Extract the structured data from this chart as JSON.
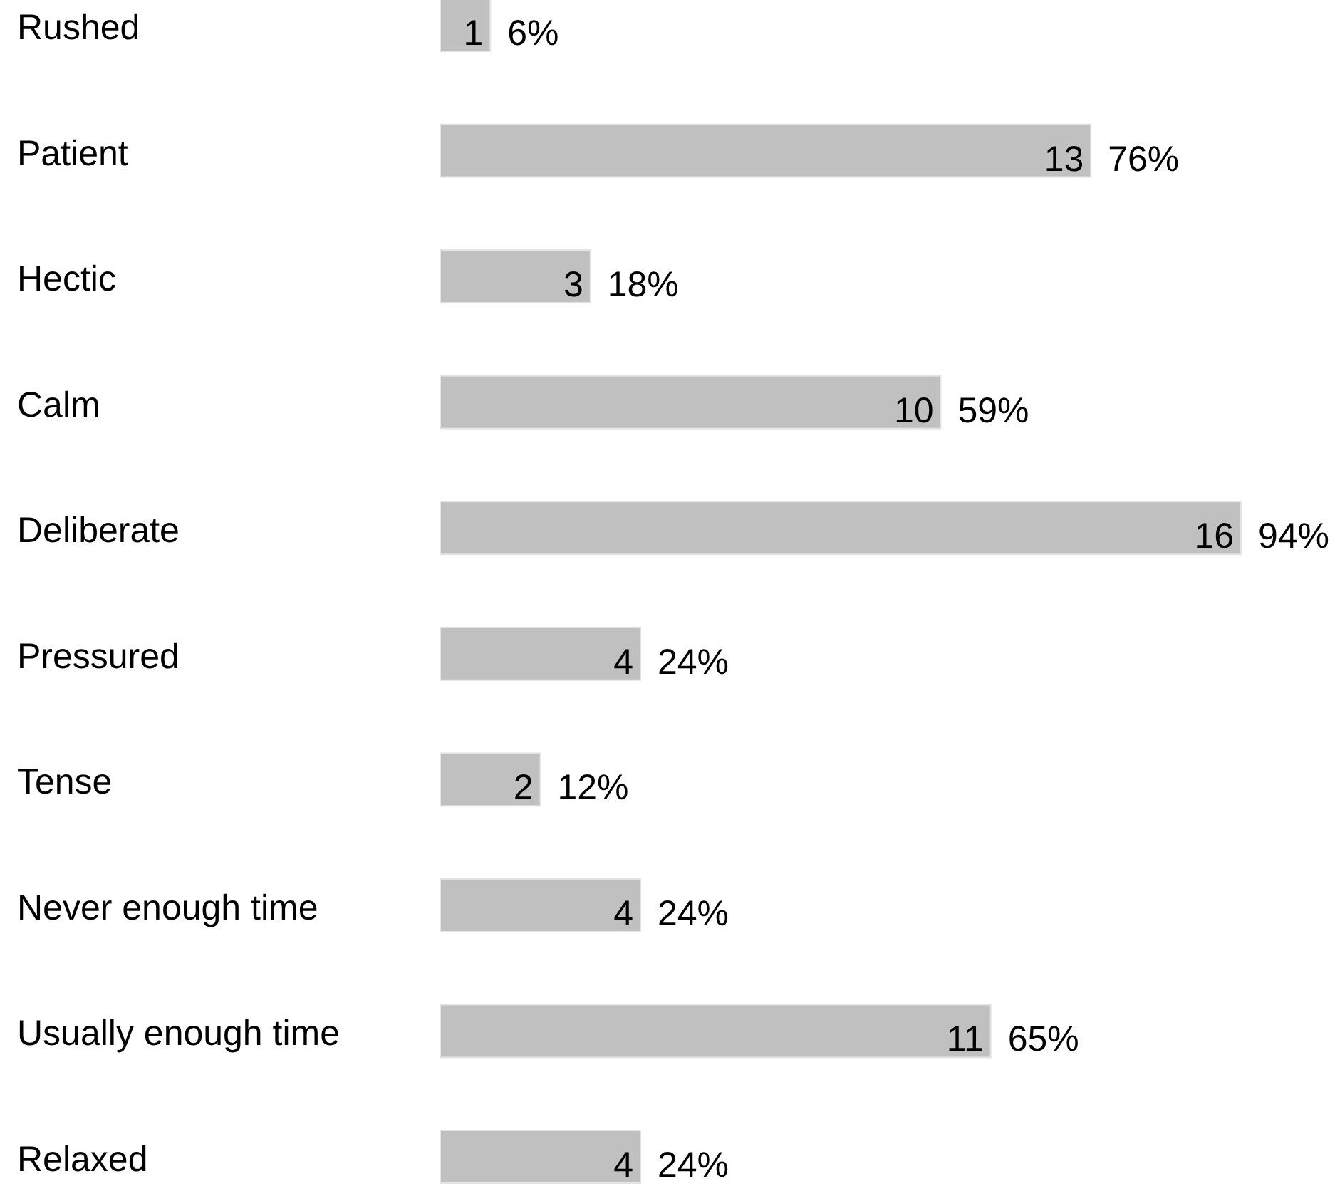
{
  "chart_data": {
    "type": "bar",
    "orientation": "horizontal",
    "categories": [
      "Rushed",
      "Patient",
      "Hectic",
      "Calm",
      "Deliberate",
      "Pressured",
      "Tense",
      "Never enough time",
      "Usually enough time",
      "Relaxed"
    ],
    "values": [
      1,
      13,
      3,
      10,
      16,
      4,
      2,
      4,
      11,
      4
    ],
    "color": "#c0c0c0",
    "data_labels": true,
    "annotations": [
      {
        "text": "6%",
        "x": 1,
        "y": "Rushed"
      },
      {
        "text": "76%",
        "x": 13,
        "y": "Patient"
      },
      {
        "text": "18%",
        "x": 3,
        "y": "Hectic"
      },
      {
        "text": "59%",
        "x": 10,
        "y": "Calm"
      },
      {
        "text": "94%",
        "x": 16,
        "y": "Deliberate"
      },
      {
        "text": "24%",
        "x": 4,
        "y": "Pressured"
      },
      {
        "text": "12%",
        "x": 2,
        "y": "Tense"
      },
      {
        "text": "24%",
        "x": 4,
        "y": "Never enough time"
      },
      {
        "text": "65%",
        "x": 11,
        "y": "Usually enough time"
      },
      {
        "text": "24%",
        "x": 4,
        "y": "Relaxed"
      }
    ]
  }
}
